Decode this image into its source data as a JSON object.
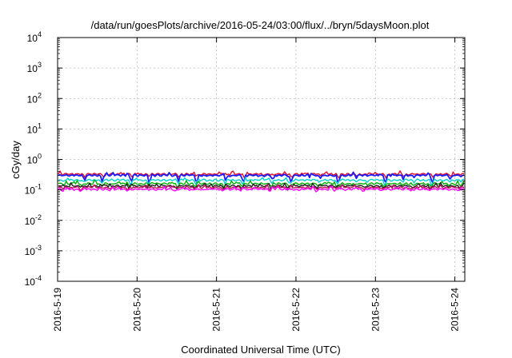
{
  "chart_data": {
    "type": "line",
    "title": "/data/run/goesPlots/archive/2016-05-24/03:00/flux/../bryn/5daysMoon.plot",
    "xlabel": "Coordinated Universal Time (UTC)",
    "ylabel": "cGy/day",
    "y_scale": "log",
    "ylim": [
      0.0001,
      10000
    ],
    "xlim": [
      "2016-05-19 00:00",
      "2016-05-24 03:00"
    ],
    "x_ticks": [
      "2016-5-19",
      "2016-5-20",
      "2016-5-21",
      "2016-5-22",
      "2016-5-23",
      "2016-5-24"
    ],
    "y_ticks": [
      {
        "base": "10",
        "exp": "-4"
      },
      {
        "base": "10",
        "exp": "-3"
      },
      {
        "base": "10",
        "exp": "-2"
      },
      {
        "base": "10",
        "exp": "-1"
      },
      {
        "base": "10",
        "exp": "0"
      },
      {
        "base": "10",
        "exp": "1"
      },
      {
        "base": "10",
        "exp": "2"
      },
      {
        "base": "10",
        "exp": "3"
      },
      {
        "base": "10",
        "exp": "4"
      }
    ],
    "grid": true,
    "legend": "none",
    "series": [
      {
        "color": "#e0102a",
        "level": 0.33,
        "dip": 0.12
      },
      {
        "color": "#1a1aff",
        "level": 0.3,
        "dip": 0.22
      },
      {
        "color": "#00d0d0",
        "level": 0.21,
        "dip": 0.15
      },
      {
        "color": "#00b000",
        "level": 0.16,
        "dip": 0.12
      },
      {
        "color": "#202020",
        "level": 0.135,
        "dip": 0.1
      },
      {
        "color": "#c0105a",
        "level": 0.12,
        "dip": 0.09
      },
      {
        "color": "#ff00ff",
        "level": 0.105,
        "dip": 0.07
      }
    ]
  }
}
